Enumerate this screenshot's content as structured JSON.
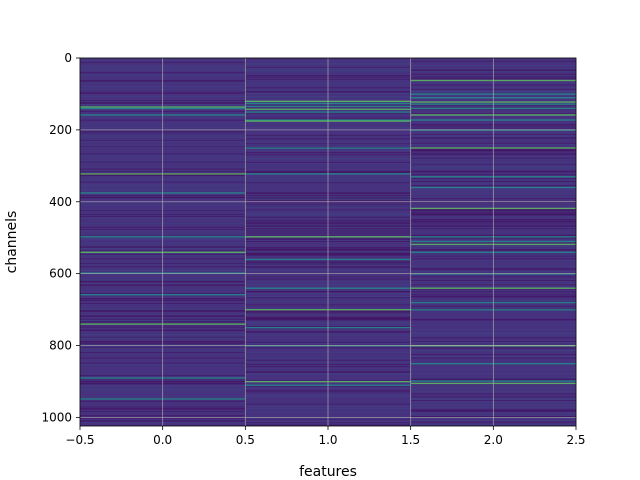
{
  "chart_data": {
    "type": "heatmap",
    "title": "",
    "xlabel": "features",
    "ylabel": "channels",
    "xlim": [
      -0.5,
      2.5
    ],
    "ylim": [
      1024,
      0
    ],
    "y_inverted": true,
    "xticks": [
      -0.5,
      0.0,
      0.5,
      1.0,
      1.5,
      2.0,
      2.5
    ],
    "xtick_labels": [
      "−0.5",
      "0.0",
      "0.5",
      "1.0",
      "1.5",
      "2.0",
      "2.5"
    ],
    "yticks": [
      0,
      200,
      400,
      600,
      800,
      1000
    ],
    "ytick_labels": [
      "0",
      "200",
      "400",
      "600",
      "800",
      "1000"
    ],
    "grid": true,
    "colormap": "viridis",
    "columns": [
      0,
      1,
      2
    ],
    "rows": 1024,
    "bright_rows": {
      "col0": [
        136,
        140,
        158,
        322,
        375,
        497,
        540,
        598,
        658,
        740,
        890,
        948
      ],
      "col1": [
        120,
        126,
        134,
        142,
        150,
        172,
        175,
        250,
        322,
        497,
        560,
        640,
        700,
        750,
        800,
        900,
        910
      ],
      "col2": [
        62,
        100,
        110,
        122,
        128,
        140,
        158,
        172,
        200,
        250,
        330,
        360,
        418,
        497,
        510,
        518,
        540,
        600,
        640,
        680,
        700,
        800,
        850,
        898,
        905
      ]
    },
    "colors": {
      "low": "#440154",
      "base": "#46327e",
      "mid": "#3b528b",
      "high": "#21918c",
      "peak": "#5ec962"
    }
  }
}
